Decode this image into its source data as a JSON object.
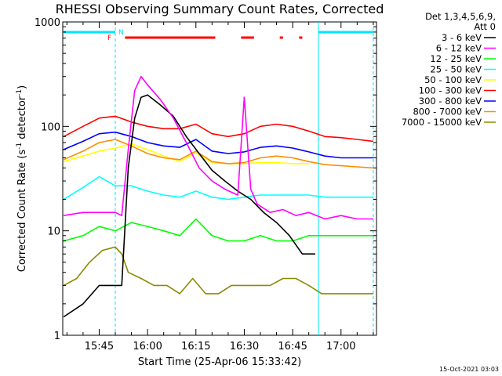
{
  "chart_data": {
    "type": "line",
    "title": "RHESSI Observing Summary Count Rates, Corrected",
    "xlabel": "Start Time (25-Apr-06 15:33:42)",
    "ylabel": "Corrected Count Rate (s",
    "ylabel_sup": "-1",
    "ylabel_mid": " detector",
    "ylabel_sup2": "-1",
    "ylabel_end": ")",
    "y_scale": "log",
    "ylim": [
      1,
      1000
    ],
    "xlim": [
      "15:33:42",
      "17:11:00"
    ],
    "x_ticks": [
      "15:45",
      "16:00",
      "16:15",
      "16:30",
      "16:45",
      "17:00"
    ],
    "y_ticks": [
      "1",
      "10",
      "100",
      "1000"
    ],
    "legend_header": [
      "Det 1,3,4,5,6,9,",
      "Att 0"
    ],
    "legend_position": "right",
    "timestamp": "15-Oct-2021 03:03",
    "flags": {
      "F": {
        "label": "F",
        "color": "#ff0000"
      },
      "N": {
        "label": "N",
        "color": "#00e5ff"
      },
      "night_lines": [
        "15:50",
        "16:53",
        "17:10"
      ],
      "flare_bar": {
        "color": "#ff0000",
        "segments": [
          [
            "15:53",
            "16:21"
          ],
          [
            "16:29",
            "16:33"
          ],
          [
            "16:41",
            "16:42"
          ],
          [
            "16:47",
            "16:48"
          ]
        ]
      },
      "night_bar": {
        "color": "#00e5ff",
        "segments": [
          [
            "15:33:42",
            "15:50"
          ],
          [
            "16:53",
            "17:10"
          ]
        ]
      }
    },
    "series": [
      {
        "name": "3 - 6 keV",
        "color": "#000000",
        "x": [
          "15:34",
          "15:40",
          "15:45",
          "15:50",
          "15:52",
          "15:54",
          "15:56",
          "15:58",
          "16:00",
          "16:04",
          "16:08",
          "16:12",
          "16:16",
          "16:20",
          "16:24",
          "16:28",
          "16:32",
          "16:36",
          "16:40",
          "16:44",
          "16:48",
          "16:52"
        ],
        "y": [
          1.5,
          2,
          3,
          3,
          3,
          40,
          120,
          190,
          200,
          160,
          125,
          80,
          55,
          38,
          30,
          24,
          20,
          15,
          12,
          9,
          6,
          6
        ]
      },
      {
        "name": "6 - 12 keV",
        "color": "#ff00ff",
        "x": [
          "15:34",
          "15:40",
          "15:45",
          "15:50",
          "15:52",
          "15:54",
          "15:56",
          "15:58",
          "16:00",
          "16:04",
          "16:08",
          "16:12",
          "16:16",
          "16:20",
          "16:24",
          "16:28",
          "16:30",
          "16:32",
          "16:34",
          "16:38",
          "16:42",
          "16:46",
          "16:50",
          "16:55",
          "17:00",
          "17:05",
          "17:10"
        ],
        "y": [
          14,
          15,
          15,
          15,
          14,
          60,
          220,
          300,
          250,
          180,
          120,
          70,
          40,
          30,
          25,
          22,
          190,
          25,
          18,
          15,
          16,
          14,
          15,
          13,
          14,
          13,
          13
        ]
      },
      {
        "name": "12 - 25 keV",
        "color": "#00ff00",
        "x": [
          "15:34",
          "15:40",
          "15:45",
          "15:50",
          "15:55",
          "16:00",
          "16:05",
          "16:10",
          "16:15",
          "16:20",
          "16:25",
          "16:30",
          "16:35",
          "16:40",
          "16:45",
          "16:50",
          "16:55",
          "17:00",
          "17:05",
          "17:10"
        ],
        "y": [
          8,
          9,
          11,
          10,
          12,
          11,
          10,
          9,
          13,
          9,
          8,
          8,
          9,
          8,
          8,
          9,
          9,
          9,
          9,
          9
        ]
      },
      {
        "name": "25 - 50 keV",
        "color": "#00ffff",
        "x": [
          "15:34",
          "15:40",
          "15:45",
          "15:50",
          "15:55",
          "16:00",
          "16:05",
          "16:10",
          "16:15",
          "16:20",
          "16:25",
          "16:30",
          "16:35",
          "16:40",
          "16:45",
          "16:50",
          "16:55",
          "17:00",
          "17:05",
          "17:10"
        ],
        "y": [
          20,
          26,
          33,
          27,
          27,
          24,
          22,
          21,
          24,
          21,
          20,
          21,
          22,
          22,
          22,
          22,
          21,
          21,
          21,
          21
        ]
      },
      {
        "name": "50 - 100 keV",
        "color": "#ffff00",
        "x": [
          "15:34",
          "15:40",
          "15:45",
          "15:50",
          "15:55",
          "16:00",
          "16:05",
          "16:10",
          "16:15",
          "16:20",
          "16:25",
          "16:30",
          "16:35",
          "16:40",
          "16:45",
          "16:50"
        ],
        "y": [
          46,
          52,
          58,
          62,
          68,
          60,
          52,
          46,
          56,
          45,
          44,
          44,
          45,
          45,
          44,
          44
        ]
      },
      {
        "name": "100 - 300 keV",
        "color": "#ff0000",
        "x": [
          "15:34",
          "15:40",
          "15:45",
          "15:50",
          "15:55",
          "16:00",
          "16:05",
          "16:10",
          "16:15",
          "16:20",
          "16:25",
          "16:30",
          "16:35",
          "16:40",
          "16:45",
          "16:50",
          "16:55",
          "17:00",
          "17:05",
          "17:10"
        ],
        "y": [
          80,
          100,
          120,
          125,
          110,
          100,
          95,
          95,
          105,
          85,
          80,
          85,
          100,
          105,
          100,
          90,
          80,
          78,
          75,
          72
        ]
      },
      {
        "name": "300 - 800 keV",
        "color": "#0000ff",
        "x": [
          "15:34",
          "15:40",
          "15:45",
          "15:50",
          "15:55",
          "16:00",
          "16:05",
          "16:10",
          "16:15",
          "16:20",
          "16:25",
          "16:30",
          "16:35",
          "16:40",
          "16:45",
          "16:50",
          "16:55",
          "17:00",
          "17:05",
          "17:10"
        ],
        "y": [
          60,
          72,
          85,
          88,
          80,
          70,
          65,
          63,
          75,
          58,
          55,
          57,
          63,
          65,
          62,
          57,
          52,
          50,
          50,
          50
        ]
      },
      {
        "name": "800 - 7000 keV",
        "color": "#ff8c00",
        "x": [
          "15:34",
          "15:40",
          "15:45",
          "15:50",
          "15:55",
          "16:00",
          "16:05",
          "16:10",
          "16:15",
          "16:20",
          "16:25",
          "16:30",
          "16:35",
          "16:40",
          "16:45",
          "16:50",
          "16:55",
          "17:00",
          "17:05",
          "17:10"
        ],
        "y": [
          48,
          58,
          70,
          75,
          65,
          55,
          50,
          48,
          58,
          46,
          44,
          45,
          50,
          52,
          50,
          46,
          43,
          42,
          41,
          40
        ]
      },
      {
        "name": "7000 - 15000 keV",
        "color": "#8b8b00",
        "x": [
          "15:34",
          "15:38",
          "15:42",
          "15:46",
          "15:50",
          "15:52",
          "15:54",
          "15:58",
          "16:02",
          "16:06",
          "16:10",
          "16:14",
          "16:18",
          "16:22",
          "16:26",
          "16:30",
          "16:34",
          "16:38",
          "16:42",
          "16:46",
          "16:50",
          "16:54",
          "16:58",
          "17:02",
          "17:06",
          "17:10"
        ],
        "y": [
          3,
          3.5,
          5,
          6.5,
          7,
          6,
          4,
          3.5,
          3,
          3,
          2.5,
          3.5,
          2.5,
          2.5,
          3,
          3,
          3,
          3,
          3.5,
          3.5,
          3,
          2.5,
          2.5,
          2.5,
          2.5,
          2.5
        ]
      }
    ]
  }
}
